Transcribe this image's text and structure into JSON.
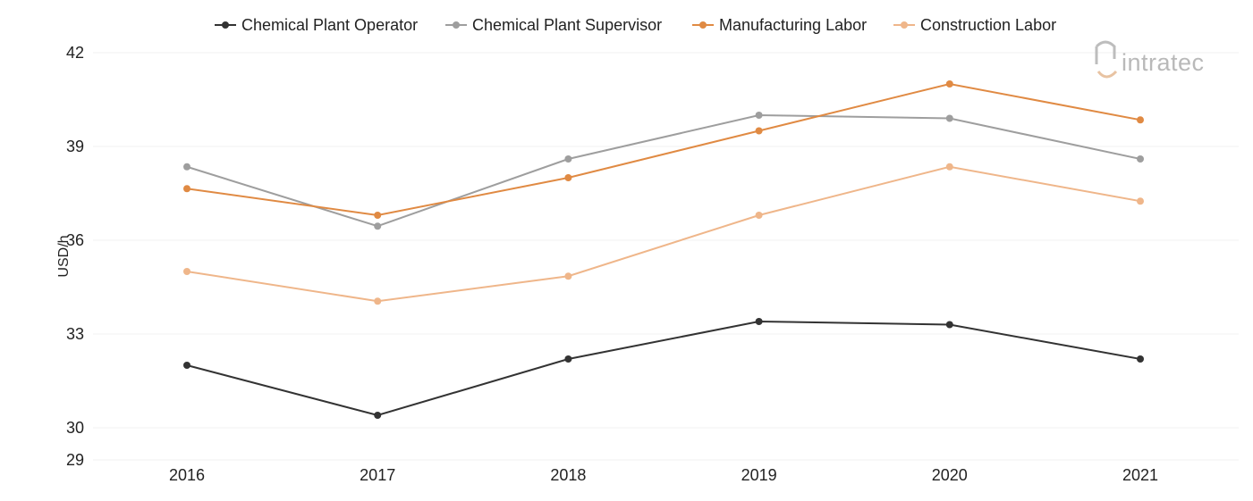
{
  "logo": {
    "text": "intratec"
  },
  "chart_data": {
    "type": "line",
    "title": "",
    "xlabel": "",
    "ylabel": "USD/h",
    "x": [
      "2016",
      "2017",
      "2018",
      "2019",
      "2020",
      "2021"
    ],
    "yticks": [
      29,
      30,
      33,
      36,
      39,
      42
    ],
    "ylim": [
      29,
      42
    ],
    "grid": true,
    "legend": "top-center",
    "series": [
      {
        "name": "Chemical Plant Operator",
        "color": "#333333",
        "values": [
          32.0,
          30.4,
          32.2,
          33.4,
          33.3,
          32.2
        ]
      },
      {
        "name": "Chemical Plant Supervisor",
        "color": "#9e9e9e",
        "values": [
          38.35,
          36.45,
          38.6,
          40.0,
          39.9,
          38.6
        ]
      },
      {
        "name": "Manufacturing Labor",
        "color": "#e08a43",
        "values": [
          37.65,
          36.8,
          38.0,
          39.5,
          41.0,
          39.85
        ]
      },
      {
        "name": "Construction Labor",
        "color": "#efb68a",
        "values": [
          35.0,
          34.05,
          34.85,
          36.8,
          38.35,
          37.25
        ]
      }
    ]
  }
}
